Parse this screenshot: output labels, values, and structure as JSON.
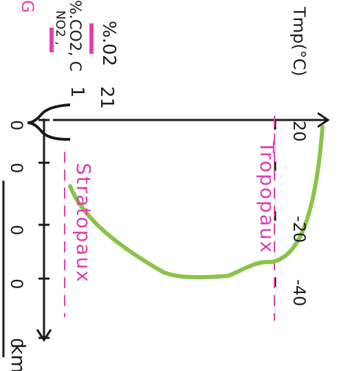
{
  "notes": {
    "line1_number": "21",
    "line1_percent": "%.02",
    "line2_number": "1",
    "line2_percent": "%.CO2, C",
    "line2_sub": "NO2 ,",
    "edge_letter": "G"
  },
  "axes": {
    "y_unit": "km",
    "x_label": "Tmp(°C)",
    "x_ticks": [
      "-40",
      "-20",
      "20"
    ],
    "y_ticks": [
      "0",
      "0",
      "0",
      "0",
      "0"
    ]
  },
  "labels": {
    "stratopause": "Stratopaux",
    "tropopause": "Tropopaux"
  },
  "colors": {
    "curve": "#8bc34a",
    "annotation": "#e040b0",
    "ink": "#1a1a1a"
  },
  "chart_data": {
    "type": "line",
    "x_label": "Tmp(°C)",
    "y_label": "km",
    "curve": [
      {
        "temp": -55,
        "alt": 0.83
      },
      {
        "temp": -40,
        "alt": 0.7
      },
      {
        "temp": -32,
        "alt": 0.55
      },
      {
        "temp": -30,
        "alt": 0.5
      },
      {
        "temp": -34,
        "alt": 0.38
      },
      {
        "temp": -38,
        "alt": 0.27
      },
      {
        "temp": -30,
        "alt": 0.18
      },
      {
        "temp": -10,
        "alt": 0.09
      },
      {
        "temp": 20,
        "alt": 0.0
      }
    ]
  }
}
